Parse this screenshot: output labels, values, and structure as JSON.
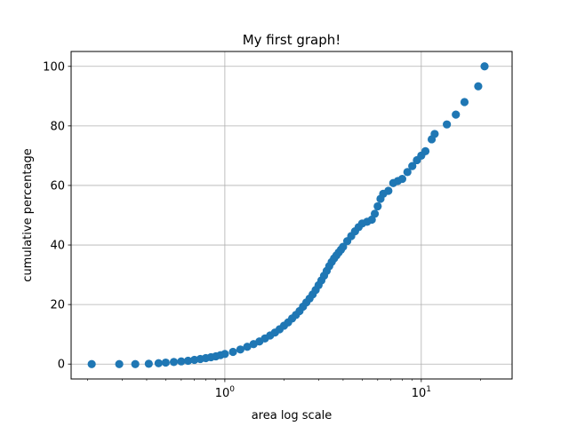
{
  "chart_data": {
    "type": "scatter",
    "title": "My first graph!",
    "xlabel": "area log scale",
    "ylabel": "cumulative percentage",
    "x_scale": "log",
    "xlim": [
      0.165,
      29
    ],
    "ylim": [
      -5,
      105
    ],
    "x_ticks": [
      {
        "value": 1,
        "base": "10",
        "exp": "0"
      },
      {
        "value": 10,
        "base": "10",
        "exp": "1"
      }
    ],
    "y_ticks": [
      0,
      20,
      40,
      60,
      80,
      100
    ],
    "y_tick_labels": [
      "0",
      "20",
      "40",
      "60",
      "80",
      "100"
    ],
    "grid": true,
    "legend": "none",
    "marker_color": "#1f77b4",
    "points": [
      [
        0.21,
        0.0
      ],
      [
        0.29,
        0.0
      ],
      [
        0.35,
        0.0
      ],
      [
        0.41,
        0.1
      ],
      [
        0.46,
        0.3
      ],
      [
        0.5,
        0.5
      ],
      [
        0.55,
        0.7
      ],
      [
        0.6,
        0.9
      ],
      [
        0.65,
        1.1
      ],
      [
        0.7,
        1.4
      ],
      [
        0.75,
        1.7
      ],
      [
        0.8,
        2.0
      ],
      [
        0.85,
        2.3
      ],
      [
        0.9,
        2.6
      ],
      [
        0.95,
        3.0
      ],
      [
        1.0,
        3.4
      ],
      [
        1.1,
        4.1
      ],
      [
        1.2,
        4.9
      ],
      [
        1.3,
        5.8
      ],
      [
        1.4,
        6.7
      ],
      [
        1.5,
        7.6
      ],
      [
        1.6,
        8.6
      ],
      [
        1.7,
        9.6
      ],
      [
        1.8,
        10.6
      ],
      [
        1.9,
        11.7
      ],
      [
        2.0,
        12.9
      ],
      [
        2.1,
        14.0
      ],
      [
        2.2,
        15.3
      ],
      [
        2.3,
        16.5
      ],
      [
        2.4,
        17.8
      ],
      [
        2.5,
        19.3
      ],
      [
        2.6,
        20.7
      ],
      [
        2.7,
        22.0
      ],
      [
        2.8,
        23.4
      ],
      [
        2.9,
        24.9
      ],
      [
        3.0,
        26.5
      ],
      [
        3.1,
        28.1
      ],
      [
        3.2,
        29.7
      ],
      [
        3.3,
        31.3
      ],
      [
        3.4,
        32.9
      ],
      [
        3.5,
        34.3
      ],
      [
        3.6,
        35.5
      ],
      [
        3.7,
        36.5
      ],
      [
        3.8,
        37.5
      ],
      [
        3.9,
        38.4
      ],
      [
        4.0,
        39.4
      ],
      [
        4.2,
        41.3
      ],
      [
        4.4,
        43.0
      ],
      [
        4.6,
        44.6
      ],
      [
        4.8,
        46.0
      ],
      [
        5.0,
        47.2
      ],
      [
        5.3,
        47.8
      ],
      [
        5.6,
        48.5
      ],
      [
        5.8,
        50.5
      ],
      [
        6.0,
        53.0
      ],
      [
        6.2,
        55.5
      ],
      [
        6.4,
        57.2
      ],
      [
        6.8,
        58.2
      ],
      [
        7.2,
        60.8
      ],
      [
        7.6,
        61.5
      ],
      [
        8.0,
        62.2
      ],
      [
        8.5,
        64.5
      ],
      [
        9.0,
        66.5
      ],
      [
        9.5,
        68.5
      ],
      [
        10.0,
        70.0
      ],
      [
        10.5,
        71.5
      ],
      [
        11.3,
        75.5
      ],
      [
        11.7,
        77.3
      ],
      [
        13.5,
        80.5
      ],
      [
        15.0,
        83.8
      ],
      [
        16.6,
        88.0
      ],
      [
        19.5,
        93.3
      ],
      [
        21.0,
        100.0
      ]
    ]
  }
}
